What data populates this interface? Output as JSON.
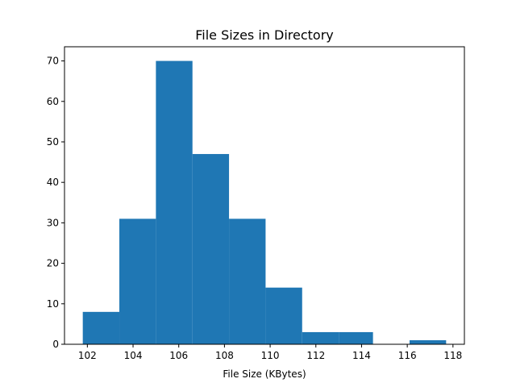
{
  "chart_data": {
    "type": "bar",
    "title": "File Sizes in Directory",
    "xlabel": "File Size (KBytes)",
    "ylabel": "",
    "bins": [
      {
        "start": 101.8,
        "end": 103.4,
        "count": 8
      },
      {
        "start": 103.4,
        "end": 105.0,
        "count": 31
      },
      {
        "start": 105.0,
        "end": 106.6,
        "count": 70
      },
      {
        "start": 106.6,
        "end": 108.2,
        "count": 47
      },
      {
        "start": 108.2,
        "end": 109.8,
        "count": 31
      },
      {
        "start": 109.8,
        "end": 111.4,
        "count": 14
      },
      {
        "start": 111.4,
        "end": 113.0,
        "count": 3
      },
      {
        "start": 113.0,
        "end": 114.5,
        "count": 3
      },
      {
        "start": 114.5,
        "end": 116.1,
        "count": 0
      },
      {
        "start": 116.1,
        "end": 117.7,
        "count": 1
      }
    ],
    "xlim": [
      101.0,
      118.5
    ],
    "ylim": [
      0,
      73.5
    ],
    "xticks": [
      102,
      104,
      106,
      108,
      110,
      112,
      114,
      116,
      118
    ],
    "yticks": [
      0,
      10,
      20,
      30,
      40,
      50,
      60,
      70
    ],
    "grid": false,
    "bar_color": "#1f77b4"
  }
}
